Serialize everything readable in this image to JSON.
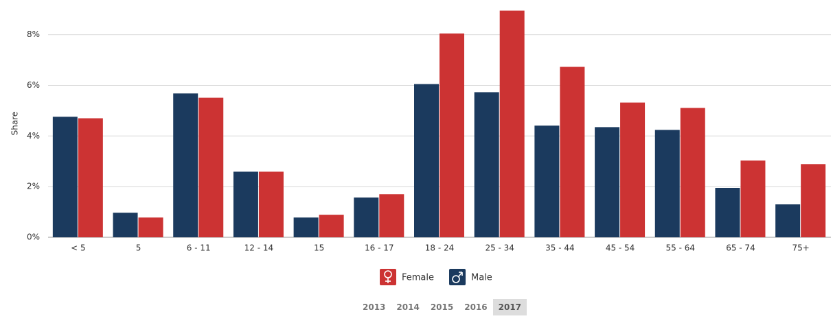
{
  "chart_data": {
    "type": "bar",
    "y_label": "Share",
    "categories": [
      "< 5",
      "5",
      "6 - 11",
      "12 - 14",
      "15",
      "16 - 17",
      "18 - 24",
      "25 - 34",
      "35 - 44",
      "45 - 54",
      "55 - 64",
      "65 - 74",
      "75+"
    ],
    "series": [
      {
        "name": "Female",
        "color": "#cc3333",
        "values": [
          4.7,
          0.78,
          5.51,
          2.59,
          0.89,
          1.7,
          8.05,
          8.95,
          6.73,
          5.32,
          5.11,
          3.03,
          2.89
        ]
      },
      {
        "name": "Male",
        "color": "#1b3a5e",
        "values": [
          4.76,
          0.97,
          5.68,
          2.59,
          0.78,
          1.57,
          6.05,
          5.73,
          4.41,
          4.35,
          4.24,
          1.95,
          1.3
        ]
      }
    ],
    "ylim": [
      0,
      9.1
    ],
    "yticks": [
      {
        "value": 0,
        "label": "0%"
      },
      {
        "value": 2,
        "label": "2%"
      },
      {
        "value": 4,
        "label": "4%"
      },
      {
        "value": 6,
        "label": "6%"
      },
      {
        "value": 8,
        "label": "8%"
      }
    ],
    "grid": true
  },
  "year_tabs": [
    "2013",
    "2014",
    "2015",
    "2016",
    "2017"
  ]
}
